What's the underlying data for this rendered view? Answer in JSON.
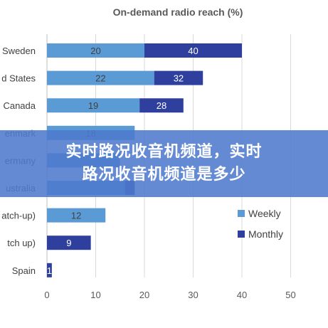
{
  "chart_data": {
    "type": "bar",
    "orientation": "horizontal",
    "stacked": true,
    "title": "On-demand radio reach (%)",
    "categories": [
      "Sweden",
      "d States",
      "Canada",
      "enmark",
      "ermany",
      "ustralia",
      "atch-up)",
      "tch up)",
      "Spain"
    ],
    "series": [
      {
        "name": "Weekly",
        "color": "#5b9bd5",
        "values": [
          20,
          22,
          19,
          18,
          15,
          16,
          12,
          0,
          0
        ],
        "labels": [
          "20",
          "22",
          "19",
          "18",
          "",
          "",
          "12",
          "",
          ""
        ]
      },
      {
        "name": "Monthly",
        "color": "#2f3f9e",
        "values": [
          20,
          10,
          9,
          0,
          0,
          2,
          0,
          9,
          1
        ],
        "labels": [
          "40",
          "32",
          "28",
          "",
          "",
          "",
          "",
          "9",
          "1"
        ]
      }
    ],
    "xlim": [
      0,
      50
    ],
    "xticks": [
      "0",
      "10",
      "20",
      "30",
      "40",
      "50"
    ],
    "grid": true,
    "legend_position": "right"
  },
  "banner": {
    "line1": "实时路况收音机频道，实时",
    "line2": "路况收音机频道是多少"
  }
}
